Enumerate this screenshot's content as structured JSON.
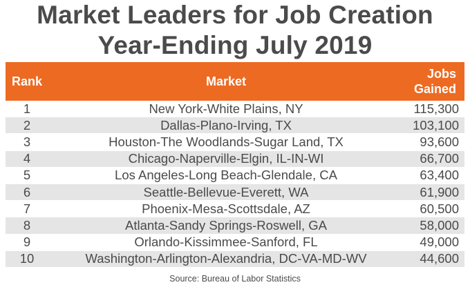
{
  "title_line1": "Market Leaders for Job Creation",
  "title_line2": "Year-Ending July 2019",
  "source": "Source: Bureau of Labor Statistics",
  "colors": {
    "header_bg": "#ed6a22",
    "row_alt": "#e5e5e5",
    "text": "#4a4a4a"
  },
  "chart_data": {
    "type": "table",
    "title": "Market Leaders for Job Creation Year-Ending July 2019",
    "columns": [
      "Rank",
      "Market",
      "Jobs Gained"
    ],
    "column_header_lines": {
      "jobs": [
        "Jobs",
        "Gained"
      ]
    },
    "rows": [
      {
        "rank": "1",
        "market": "New York-White Plains, NY",
        "jobs": "115,300"
      },
      {
        "rank": "2",
        "market": "Dallas-Plano-Irving, TX",
        "jobs": "103,100"
      },
      {
        "rank": "3",
        "market": "Houston-The Woodlands-Sugar Land, TX",
        "jobs": "93,600"
      },
      {
        "rank": "4",
        "market": "Chicago-Naperville-Elgin, IL-IN-WI",
        "jobs": "66,700"
      },
      {
        "rank": "5",
        "market": "Los Angeles-Long Beach-Glendale, CA",
        "jobs": "63,400"
      },
      {
        "rank": "6",
        "market": "Seattle-Bellevue-Everett, WA",
        "jobs": "61,900"
      },
      {
        "rank": "7",
        "market": "Phoenix-Mesa-Scottsdale, AZ",
        "jobs": "60,500"
      },
      {
        "rank": "8",
        "market": "Atlanta-Sandy Springs-Roswell, GA",
        "jobs": "58,000"
      },
      {
        "rank": "9",
        "market": "Orlando-Kissimmee-Sanford, FL",
        "jobs": "49,000"
      },
      {
        "rank": "10",
        "market": "Washington-Arlington-Alexandria, DC-VA-MD-WV",
        "jobs": "44,600"
      }
    ]
  }
}
